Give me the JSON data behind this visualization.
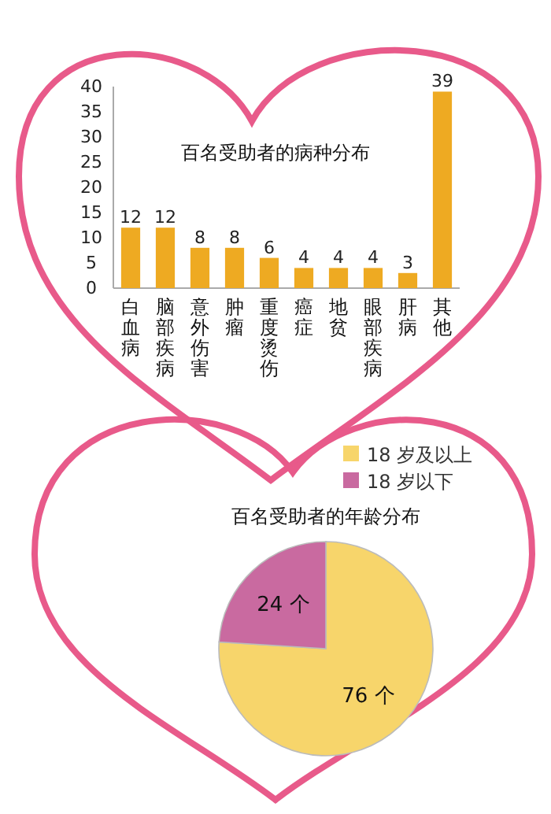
{
  "chart_data": [
    {
      "type": "bar",
      "title": "百名受助者的病种分布",
      "categories": [
        "白血病",
        "脑部疾病",
        "意外伤害",
        "肿瘤",
        "重度烫伤",
        "癌症",
        "地贫",
        "眼部疾病",
        "肝病",
        "其他"
      ],
      "values": [
        12,
        12,
        8,
        8,
        6,
        4,
        4,
        4,
        3,
        39
      ],
      "color": "#eeaa22",
      "ylim": [
        0,
        40
      ],
      "yticks": [
        0,
        5,
        10,
        15,
        20,
        25,
        30,
        35,
        40
      ],
      "data_labels": true
    },
    {
      "type": "pie",
      "title": "百名受助者的年龄分布",
      "categories": [
        "18 岁及以上",
        "18 岁以下"
      ],
      "values": [
        76,
        24
      ],
      "colors": [
        "#f7d56b",
        "#c96aa0"
      ],
      "value_labels": [
        "76 个",
        "24 个"
      ],
      "legend": "top right"
    }
  ]
}
